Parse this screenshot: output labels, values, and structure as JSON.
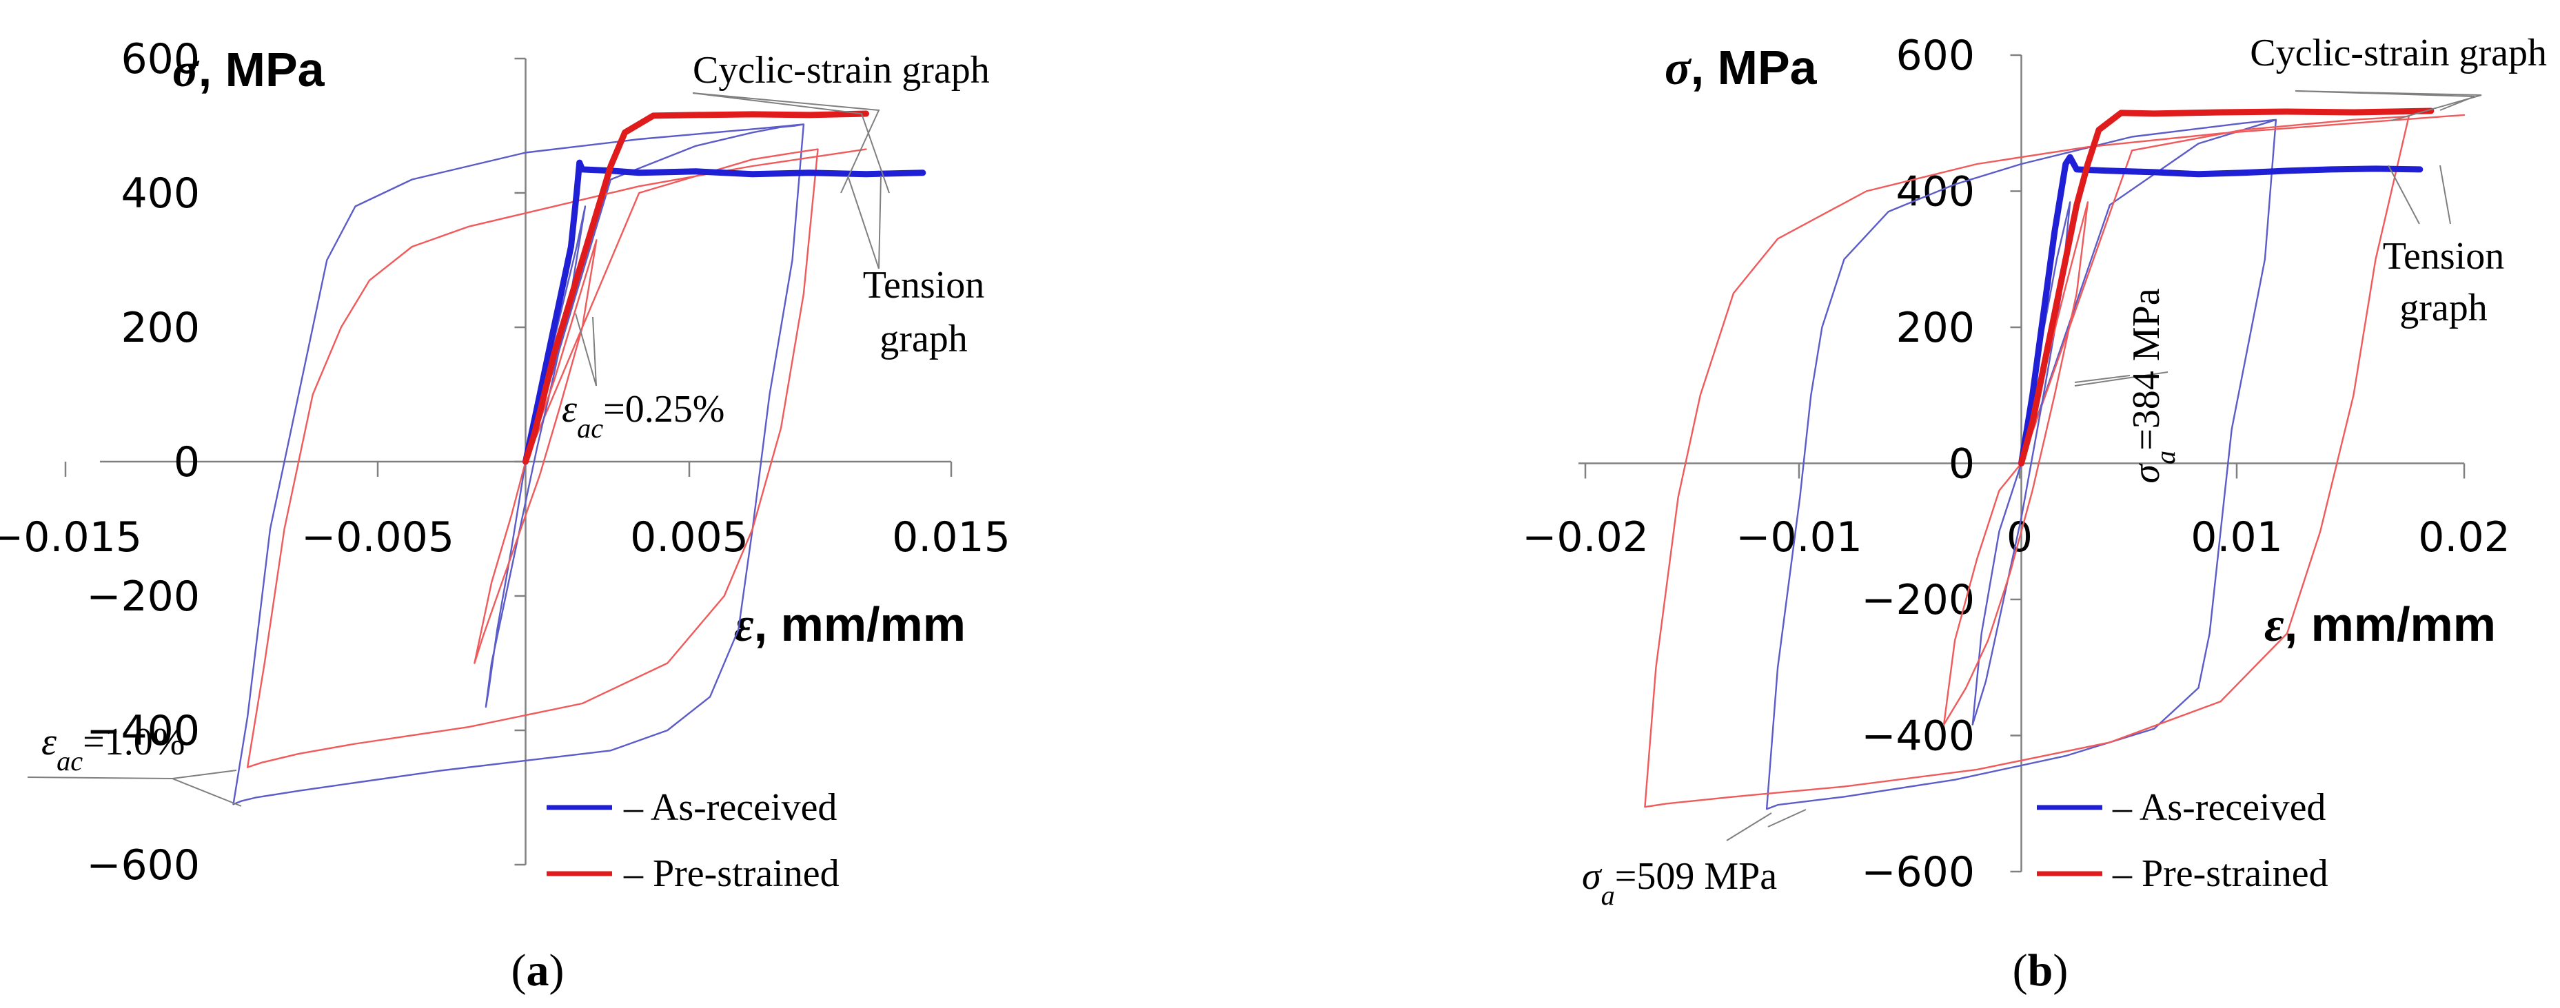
{
  "chart_data": [
    {
      "panel_label": "a",
      "type": "line",
      "xlabel": "ε, mm/mm",
      "ylabel": "σ, MPa",
      "xlim": [
        -0.015,
        0.015
      ],
      "ylim": [
        -600,
        600
      ],
      "xticks": [
        "−0.015",
        "−0.005",
        "0.005",
        "0.015"
      ],
      "yticks": [
        "600",
        "400",
        "200",
        "0",
        "−200",
        "−400",
        "−600"
      ],
      "legend": [
        {
          "name": "– As-received",
          "color": "#1f1fd6"
        },
        {
          "name": "– Pre-strained",
          "color": "#e01b1b"
        }
      ],
      "annotations": {
        "cyclic": "Cyclic-strain graph",
        "tension_1": "Tension",
        "tension_2": "graph",
        "strain_small_sym": "ε",
        "strain_small_sub": "ac",
        "strain_small_val": "=0.25%",
        "strain_large_sym": "ε",
        "strain_large_sub": "ac",
        "strain_large_val": "=1.0%"
      },
      "series": [
        {
          "name": "As-received",
          "role": "tension",
          "color": "#1f1fd6",
          "x": [
            0.0,
            0.0004,
            0.0008,
            0.0012,
            0.0016,
            0.0018,
            0.0019,
            0.002,
            0.003,
            0.004,
            0.006,
            0.008,
            0.01,
            0.012,
            0.014
          ],
          "y": [
            0,
            80,
            160,
            240,
            320,
            400,
            445,
            435,
            433,
            430,
            432,
            428,
            430,
            428,
            430
          ]
        },
        {
          "name": "Pre-strained",
          "role": "tension",
          "color": "#e01b1b",
          "x": [
            0.0,
            0.0003,
            0.0006,
            0.001,
            0.0015,
            0.002,
            0.0025,
            0.003,
            0.0035,
            0.0045,
            0.006,
            0.008,
            0.01,
            0.012
          ],
          "y": [
            0,
            40,
            90,
            160,
            230,
            300,
            370,
            440,
            490,
            515,
            516,
            517,
            516,
            518
          ]
        },
        {
          "name": "As-received",
          "role": "cyclic, εac = 1.0%",
          "color": "#5b5bc9",
          "x": [
            0.0,
            0.003,
            0.006,
            0.008,
            0.009,
            0.0095,
            0.0098,
            0.0094,
            0.0086,
            0.008,
            0.0075,
            0.0065,
            0.005,
            0.003,
            0.0,
            -0.003,
            -0.006,
            -0.008,
            -0.0095,
            -0.01,
            -0.0103,
            -0.0098,
            -0.009,
            -0.008,
            -0.0075,
            -0.007,
            -0.006,
            -0.004,
            0.0,
            0.004,
            0.008,
            0.0098
          ],
          "y": [
            0,
            420,
            470,
            490,
            498,
            500,
            502,
            300,
            100,
            -100,
            -250,
            -350,
            -400,
            -430,
            -445,
            -460,
            -478,
            -490,
            -500,
            -505,
            -510,
            -380,
            -100,
            100,
            200,
            300,
            380,
            420,
            460,
            480,
            495,
            502
          ]
        },
        {
          "name": "Pre-strained",
          "role": "cyclic, εac = 1.0%",
          "color": "#f05a5a",
          "x": [
            0.0,
            0.004,
            0.008,
            0.0095,
            0.0103,
            0.0098,
            0.009,
            0.008,
            0.007,
            0.005,
            0.002,
            -0.002,
            -0.006,
            -0.008,
            -0.0093,
            -0.0098,
            -0.0092,
            -0.0085,
            -0.0075,
            -0.0065,
            -0.0055,
            -0.004,
            -0.002,
            0.0,
            0.004,
            0.008,
            0.012
          ],
          "y": [
            0,
            400,
            450,
            460,
            465,
            250,
            50,
            -100,
            -200,
            -300,
            -360,
            -395,
            -420,
            -435,
            -448,
            -455,
            -300,
            -100,
            100,
            200,
            270,
            320,
            350,
            370,
            410,
            440,
            465
          ]
        },
        {
          "name": "As-received",
          "role": "cyclic, εac = 0.25%",
          "color": "#5b5bc9",
          "x": [
            0.0,
            0.001,
            0.0018,
            0.0021,
            0.0016,
            0.001,
            0.0004,
            0.0,
            -0.0004,
            -0.0008,
            -0.0012,
            -0.0014,
            -0.0013,
            -0.001,
            -0.0005,
            0.0
          ],
          "y": [
            0,
            180,
            320,
            380,
            250,
            130,
            20,
            -60,
            -140,
            -220,
            -300,
            -365,
            -340,
            -250,
            -130,
            0
          ]
        },
        {
          "name": "Pre-strained",
          "role": "cyclic, εac = 0.25%",
          "color": "#f05a5a",
          "x": [
            0.0,
            0.001,
            0.002,
            0.0025,
            0.002,
            0.0012,
            0.0005,
            0.0,
            -0.0005,
            -0.001,
            -0.0015,
            -0.0018,
            -0.0017,
            -0.0012,
            -0.0005,
            0.0
          ],
          "y": [
            0,
            120,
            260,
            330,
            200,
            80,
            -20,
            -80,
            -140,
            -200,
            -260,
            -300,
            -280,
            -180,
            -80,
            0
          ]
        }
      ]
    },
    {
      "panel_label": "b",
      "type": "line",
      "xlabel": "ε, mm/mm",
      "ylabel": "σ, MPa",
      "xlim": [
        -0.02,
        0.02
      ],
      "ylim": [
        -600,
        600
      ],
      "xticks": [
        "−0.02",
        "−0.01",
        "0",
        "0.01",
        "0.02"
      ],
      "yticks": [
        "600",
        "400",
        "200",
        "0",
        "−200",
        "−400",
        "−600"
      ],
      "legend": [
        {
          "name": "– As-received",
          "color": "#1f1fd6"
        },
        {
          "name": "– Pre-strained",
          "color": "#e01b1b"
        }
      ],
      "annotations": {
        "cyclic": "Cyclic-strain graph",
        "tension_1": "Tension",
        "tension_2": "graph",
        "stress_small_sym": "σ",
        "stress_small_sub": "a",
        "stress_small_val": "=384 MPa",
        "stress_large_sym": "σ",
        "stress_large_sub": "a",
        "stress_large_val": "=509 MPa"
      },
      "series": [
        {
          "name": "As-received",
          "role": "tension",
          "color": "#1f1fd6",
          "x": [
            0.0,
            0.0005,
            0.001,
            0.0015,
            0.002,
            0.0022,
            0.0025,
            0.004,
            0.006,
            0.008,
            0.01,
            0.012,
            0.014,
            0.016,
            0.018
          ],
          "y": [
            0,
            100,
            220,
            340,
            440,
            450,
            432,
            430,
            428,
            425,
            427,
            430,
            432,
            433,
            432
          ]
        },
        {
          "name": "Pre-strained",
          "role": "tension",
          "color": "#e01b1b",
          "x": [
            0.0,
            0.0005,
            0.001,
            0.0015,
            0.002,
            0.0025,
            0.003,
            0.0035,
            0.0045,
            0.006,
            0.009,
            0.012,
            0.015,
            0.0185
          ],
          "y": [
            0,
            60,
            140,
            220,
            300,
            380,
            440,
            490,
            515,
            514,
            516,
            517,
            516,
            518
          ]
        },
        {
          "name": "As-received",
          "role": "cyclic, σa = 509 MPa",
          "color": "#5b5bc9",
          "x": [
            0.0,
            0.004,
            0.008,
            0.011,
            0.0115,
            0.011,
            0.0095,
            0.009,
            0.0085,
            0.008,
            0.006,
            0.002,
            -0.003,
            -0.008,
            -0.011,
            -0.0115,
            -0.011,
            -0.01,
            -0.0095,
            -0.009,
            -0.008,
            -0.006,
            -0.003,
            0.0,
            0.005,
            0.01,
            0.0115
          ],
          "y": [
            0,
            380,
            470,
            500,
            505,
            300,
            50,
            -100,
            -250,
            -330,
            -390,
            -430,
            -465,
            -490,
            -502,
            -508,
            -300,
            -50,
            100,
            200,
            300,
            370,
            410,
            440,
            480,
            500,
            505
          ]
        },
        {
          "name": "Pre-strained",
          "role": "cyclic, σa = 509 MPa",
          "color": "#f05a5a",
          "x": [
            0.0,
            0.005,
            0.01,
            0.015,
            0.017,
            0.0175,
            0.016,
            0.015,
            0.0135,
            0.012,
            0.009,
            0.004,
            -0.002,
            -0.008,
            -0.013,
            -0.016,
            -0.017,
            -0.0165,
            -0.0155,
            -0.0145,
            -0.013,
            -0.011,
            -0.007,
            -0.002,
            0.003,
            0.009,
            0.015,
            0.02
          ],
          "y": [
            0,
            460,
            490,
            505,
            509,
            510,
            300,
            100,
            -100,
            -250,
            -350,
            -410,
            -450,
            -475,
            -490,
            -500,
            -505,
            -300,
            -50,
            100,
            250,
            330,
            400,
            440,
            465,
            485,
            500,
            512
          ]
        },
        {
          "name": "As-received",
          "role": "cyclic, σa = 384 MPa",
          "color": "#5b5bc9",
          "x": [
            0.0,
            0.0008,
            0.0016,
            0.0022,
            0.0018,
            0.001,
            0.0,
            -0.0008,
            -0.0016,
            -0.0022,
            -0.0018,
            -0.001,
            0.0
          ],
          "y": [
            0,
            160,
            300,
            384,
            250,
            100,
            -80,
            -200,
            -320,
            -384,
            -250,
            -100,
            0
          ]
        },
        {
          "name": "Pre-strained",
          "role": "cyclic, σa = 384 MPa",
          "color": "#f05a5a",
          "x": [
            0.0,
            0.001,
            0.002,
            0.003,
            0.0025,
            0.0015,
            0.0005,
            -0.0005,
            -0.0015,
            -0.0025,
            -0.0035,
            -0.003,
            -0.002,
            -0.001,
            0.0
          ],
          "y": [
            0,
            130,
            260,
            384,
            250,
            100,
            -40,
            -160,
            -260,
            -330,
            -384,
            -260,
            -140,
            -40,
            0
          ]
        }
      ]
    }
  ]
}
